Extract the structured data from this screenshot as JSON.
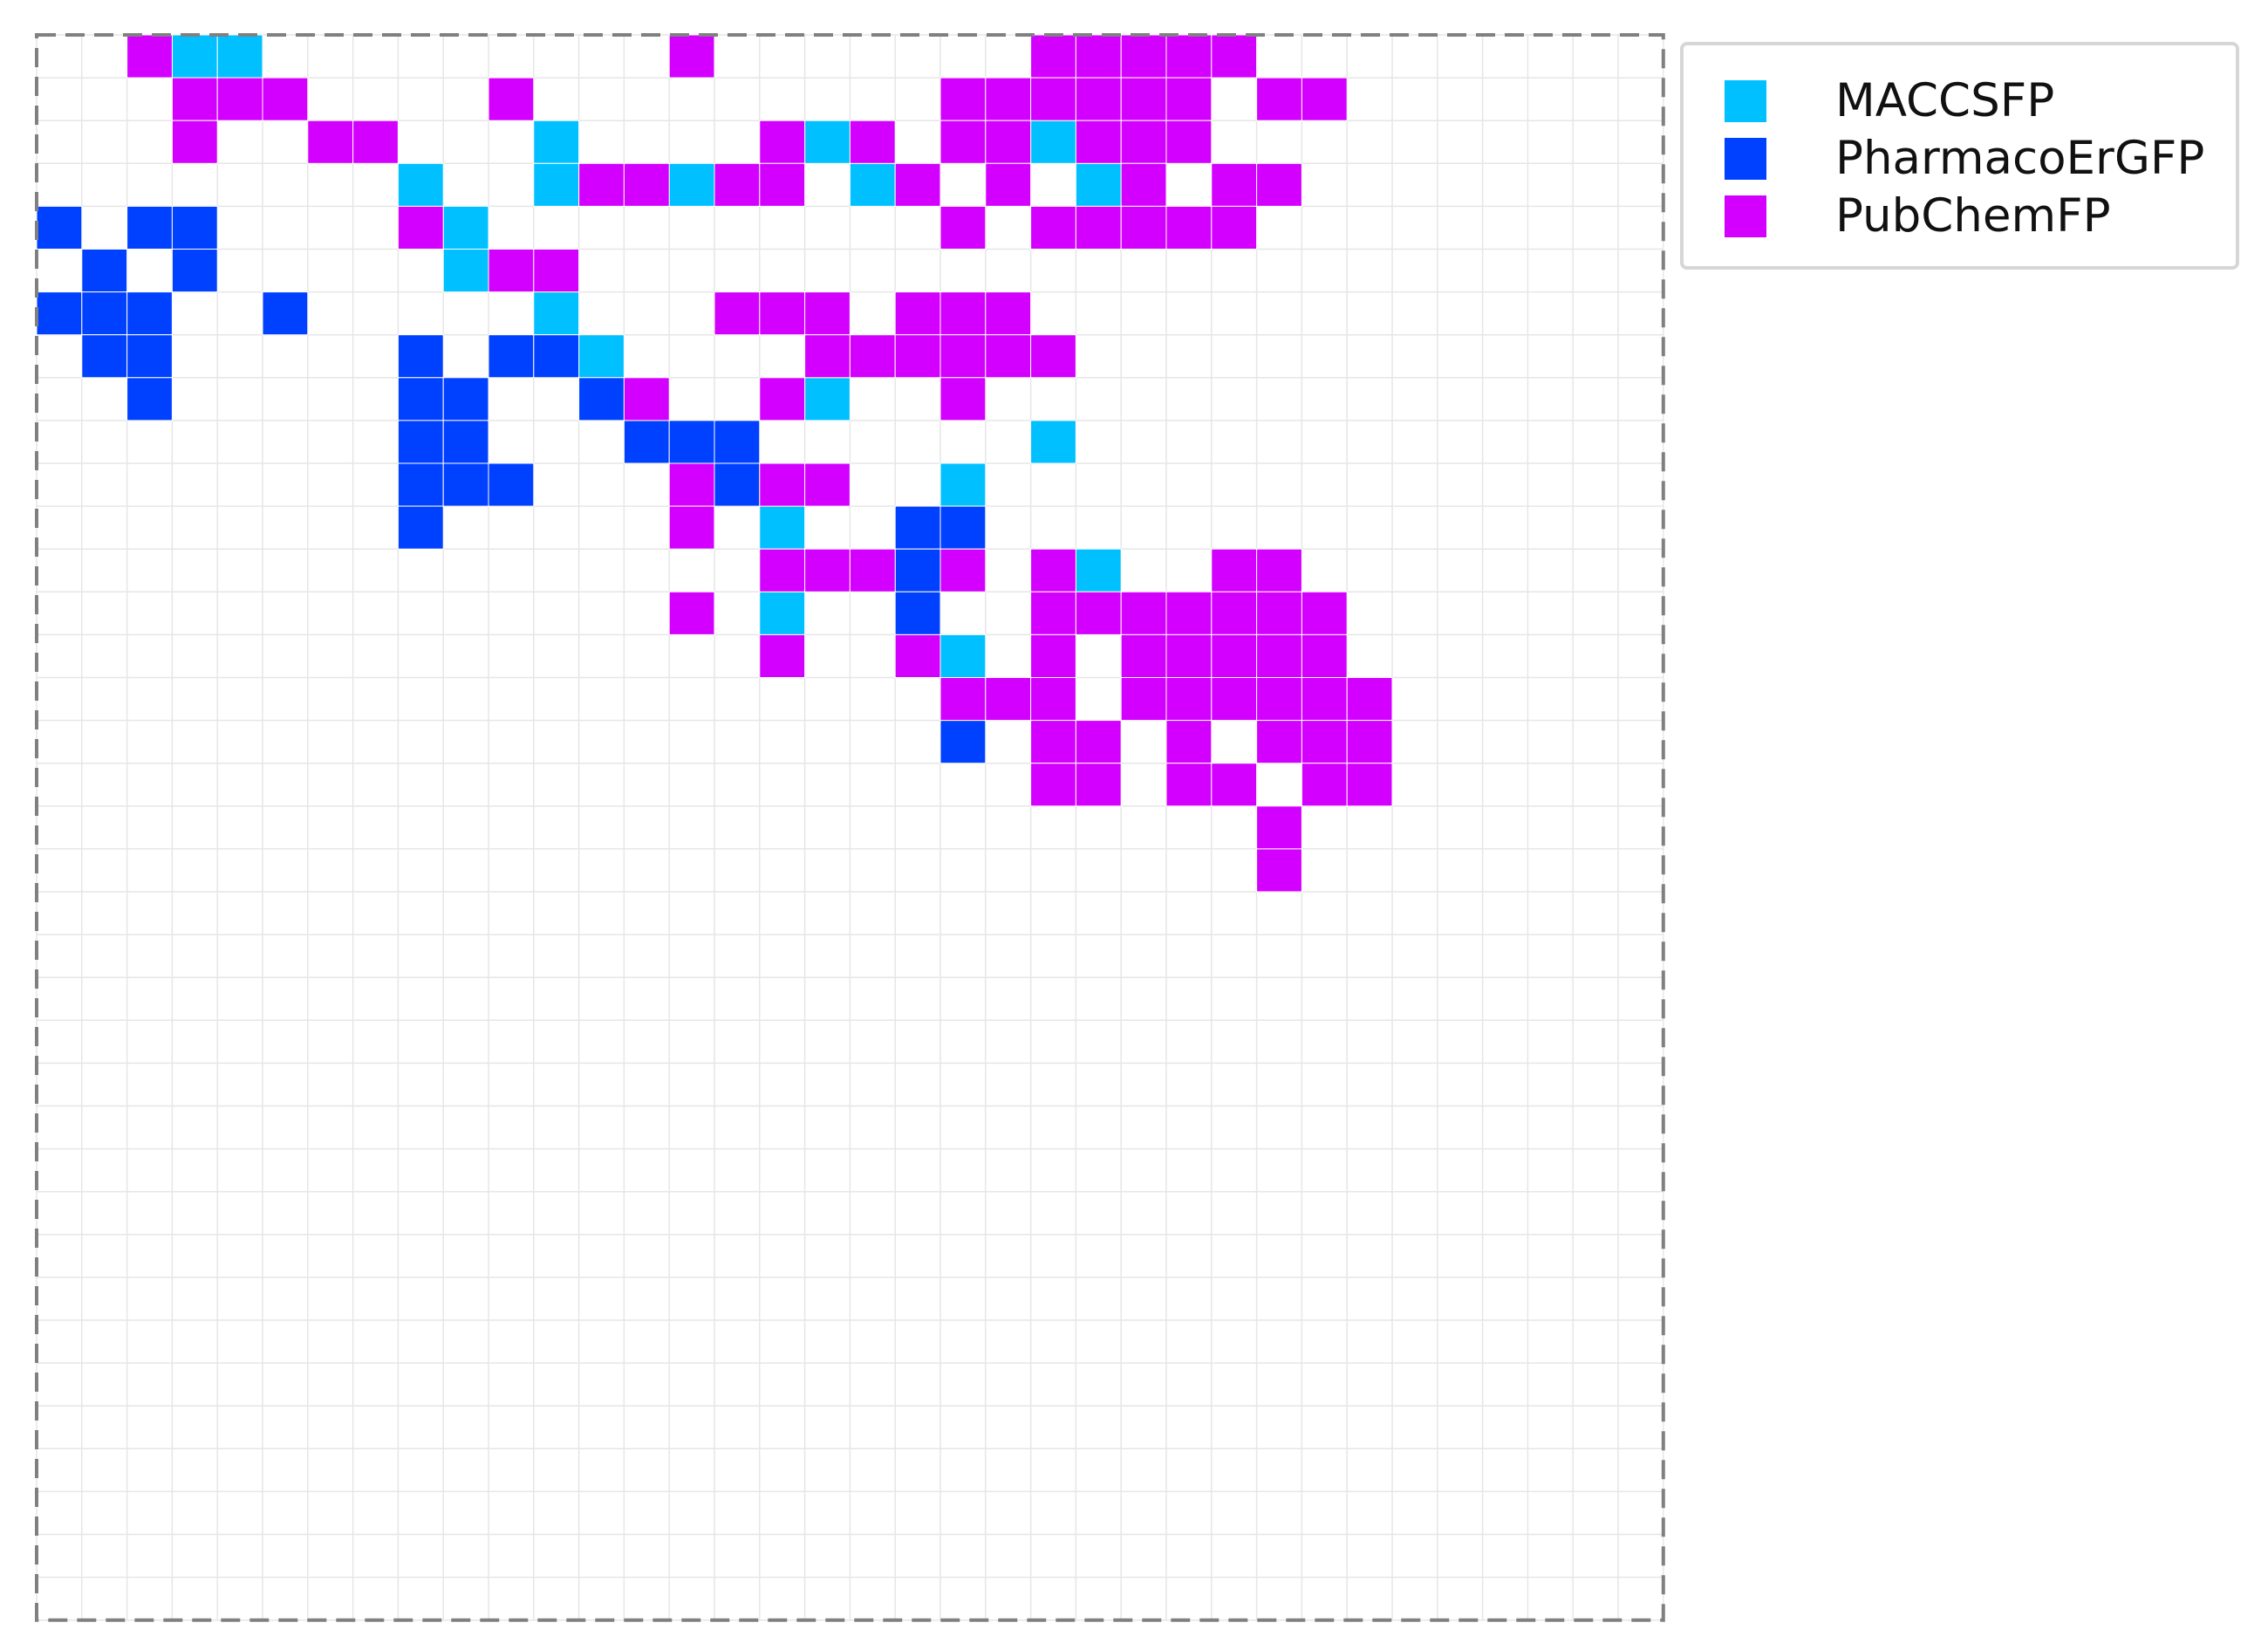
{
  "chart_data": {
    "type": "heatmap",
    "title": "",
    "xlabel": "",
    "ylabel": "",
    "grid": true,
    "grid_size": {
      "columns": 36,
      "rows": 37
    },
    "legend_position": "upper-right-outside",
    "series": [
      {
        "name": "MACCSFP",
        "color": "#00c0ff",
        "cells": [
          [
            3,
            0
          ],
          [
            4,
            0
          ],
          [
            11,
            2
          ],
          [
            17,
            2
          ],
          [
            22,
            2
          ],
          [
            8,
            3
          ],
          [
            11,
            3
          ],
          [
            14,
            3
          ],
          [
            18,
            3
          ],
          [
            23,
            3
          ],
          [
            9,
            4
          ],
          [
            9,
            5
          ],
          [
            11,
            6
          ],
          [
            12,
            7
          ],
          [
            17,
            8
          ],
          [
            22,
            9
          ],
          [
            20,
            10
          ],
          [
            16,
            11
          ],
          [
            23,
            12
          ],
          [
            16,
            13
          ],
          [
            20,
            14
          ]
        ]
      },
      {
        "name": "PharmacoErGFP",
        "color": "#0040ff",
        "cells": [
          [
            0,
            4
          ],
          [
            2,
            4
          ],
          [
            3,
            4
          ],
          [
            1,
            5
          ],
          [
            3,
            5
          ],
          [
            0,
            6
          ],
          [
            1,
            6
          ],
          [
            2,
            6
          ],
          [
            5,
            6
          ],
          [
            1,
            7
          ],
          [
            2,
            7
          ],
          [
            8,
            7
          ],
          [
            10,
            7
          ],
          [
            11,
            7
          ],
          [
            2,
            8
          ],
          [
            8,
            8
          ],
          [
            9,
            8
          ],
          [
            12,
            8
          ],
          [
            8,
            9
          ],
          [
            9,
            9
          ],
          [
            13,
            9
          ],
          [
            14,
            9
          ],
          [
            15,
            9
          ],
          [
            8,
            10
          ],
          [
            9,
            10
          ],
          [
            10,
            10
          ],
          [
            15,
            10
          ],
          [
            8,
            11
          ],
          [
            19,
            11
          ],
          [
            20,
            11
          ],
          [
            19,
            12
          ],
          [
            19,
            13
          ],
          [
            20,
            16
          ]
        ]
      },
      {
        "name": "PubChemFP",
        "color": "#d400ff",
        "cells": [
          [
            2,
            0
          ],
          [
            14,
            0
          ],
          [
            22,
            0
          ],
          [
            23,
            0
          ],
          [
            24,
            0
          ],
          [
            25,
            0
          ],
          [
            26,
            0
          ],
          [
            3,
            1
          ],
          [
            4,
            1
          ],
          [
            5,
            1
          ],
          [
            10,
            1
          ],
          [
            20,
            1
          ],
          [
            21,
            1
          ],
          [
            22,
            1
          ],
          [
            23,
            1
          ],
          [
            24,
            1
          ],
          [
            25,
            1
          ],
          [
            27,
            1
          ],
          [
            28,
            1
          ],
          [
            3,
            2
          ],
          [
            6,
            2
          ],
          [
            7,
            2
          ],
          [
            16,
            2
          ],
          [
            18,
            2
          ],
          [
            20,
            2
          ],
          [
            21,
            2
          ],
          [
            23,
            2
          ],
          [
            24,
            2
          ],
          [
            25,
            2
          ],
          [
            12,
            3
          ],
          [
            13,
            3
          ],
          [
            15,
            3
          ],
          [
            16,
            3
          ],
          [
            19,
            3
          ],
          [
            21,
            3
          ],
          [
            24,
            3
          ],
          [
            26,
            3
          ],
          [
            27,
            3
          ],
          [
            8,
            4
          ],
          [
            20,
            4
          ],
          [
            22,
            4
          ],
          [
            23,
            4
          ],
          [
            24,
            4
          ],
          [
            25,
            4
          ],
          [
            26,
            4
          ],
          [
            10,
            5
          ],
          [
            11,
            5
          ],
          [
            15,
            6
          ],
          [
            16,
            6
          ],
          [
            17,
            6
          ],
          [
            19,
            6
          ],
          [
            20,
            6
          ],
          [
            21,
            6
          ],
          [
            17,
            7
          ],
          [
            18,
            7
          ],
          [
            19,
            7
          ],
          [
            20,
            7
          ],
          [
            21,
            7
          ],
          [
            22,
            7
          ],
          [
            13,
            8
          ],
          [
            16,
            8
          ],
          [
            20,
            8
          ],
          [
            14,
            10
          ],
          [
            16,
            10
          ],
          [
            17,
            10
          ],
          [
            14,
            11
          ],
          [
            16,
            12
          ],
          [
            17,
            12
          ],
          [
            18,
            12
          ],
          [
            20,
            12
          ],
          [
            22,
            12
          ],
          [
            26,
            12
          ],
          [
            27,
            12
          ],
          [
            14,
            13
          ],
          [
            22,
            13
          ],
          [
            23,
            13
          ],
          [
            24,
            13
          ],
          [
            25,
            13
          ],
          [
            26,
            13
          ],
          [
            27,
            13
          ],
          [
            28,
            13
          ],
          [
            16,
            14
          ],
          [
            19,
            14
          ],
          [
            22,
            14
          ],
          [
            24,
            14
          ],
          [
            25,
            14
          ],
          [
            26,
            14
          ],
          [
            27,
            14
          ],
          [
            28,
            14
          ],
          [
            20,
            15
          ],
          [
            21,
            15
          ],
          [
            22,
            15
          ],
          [
            24,
            15
          ],
          [
            25,
            15
          ],
          [
            26,
            15
          ],
          [
            27,
            15
          ],
          [
            28,
            15
          ],
          [
            29,
            15
          ],
          [
            22,
            16
          ],
          [
            23,
            16
          ],
          [
            25,
            16
          ],
          [
            27,
            16
          ],
          [
            28,
            16
          ],
          [
            29,
            16
          ],
          [
            22,
            17
          ],
          [
            23,
            17
          ],
          [
            25,
            17
          ],
          [
            26,
            17
          ],
          [
            28,
            17
          ],
          [
            29,
            17
          ],
          [
            27,
            18
          ],
          [
            27,
            19
          ]
        ]
      }
    ]
  },
  "legend": {
    "items": [
      {
        "label": "MACCSFP",
        "color": "#00c0ff"
      },
      {
        "label": "PharmacoErGFP",
        "color": "#0040ff"
      },
      {
        "label": "PubChemFP",
        "color": "#d400ff"
      }
    ]
  }
}
